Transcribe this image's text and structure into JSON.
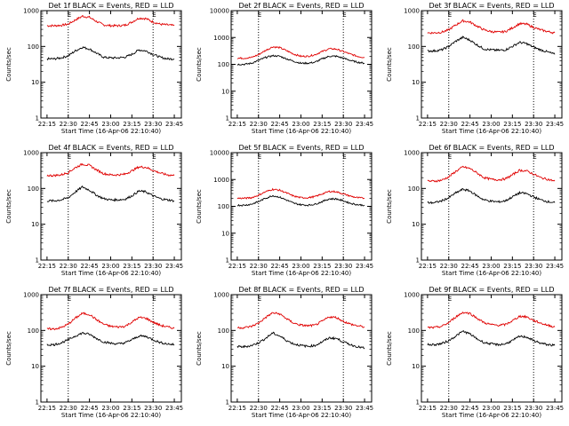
{
  "colors": {
    "events": "#000000",
    "lld": "#e00000",
    "frame": "#000000",
    "background": "#ffffff"
  },
  "chart_data": [
    {
      "type": "line",
      "title": "Det 1f BLACK = Events, RED = LLD",
      "ylabel": "Counts/sec",
      "xlabel": "Start Time (16-Apr-06 22:10:40)",
      "yscale": "log",
      "ylim": [
        1,
        1000
      ],
      "y_ticks": [
        "1",
        "10",
        "100",
        "1000"
      ],
      "x_ticks": [
        "22:15",
        "22:30",
        "22:45",
        "23:00",
        "23:15",
        "23:30",
        "23:45"
      ],
      "xlim": [
        "22:10:40",
        "23:50"
      ],
      "dotted_lines": [
        "22:30",
        "23:30"
      ],
      "corner_label": "E",
      "x": [
        "22:15",
        "22:20",
        "22:25",
        "22:30",
        "22:35",
        "22:40",
        "22:45",
        "22:50",
        "22:55",
        "23:00",
        "23:05",
        "23:10",
        "23:15",
        "23:20",
        "23:25",
        "23:30",
        "23:35",
        "23:40",
        "23:45"
      ],
      "series": [
        {
          "name": "Events",
          "color": "#000000",
          "values": [
            45,
            45,
            48,
            55,
            75,
            95,
            85,
            65,
            50,
            48,
            48,
            50,
            60,
            80,
            75,
            60,
            50,
            45,
            45
          ]
        },
        {
          "name": "LLD",
          "color": "#e00000",
          "values": [
            380,
            380,
            390,
            420,
            550,
            700,
            650,
            500,
            400,
            380,
            380,
            390,
            480,
            620,
            600,
            480,
            420,
            400,
            380
          ]
        }
      ]
    },
    {
      "type": "line",
      "title": "Det 2f BLACK = Events, RED = LLD",
      "ylabel": "Counts/sec",
      "xlabel": "Start Time (16-Apr-06 22:10:40)",
      "yscale": "log",
      "ylim": [
        1,
        10000
      ],
      "y_ticks": [
        "1",
        "10",
        "100",
        "1000",
        "10000"
      ],
      "x_ticks": [
        "22:15",
        "22:30",
        "22:45",
        "23:00",
        "23:15",
        "23:30",
        "23:45"
      ],
      "xlim": [
        "22:10:40",
        "23:50"
      ],
      "dotted_lines": [
        "22:30",
        "23:30"
      ],
      "corner_label": "E",
      "x": [
        "22:15",
        "22:20",
        "22:25",
        "22:30",
        "22:35",
        "22:40",
        "22:45",
        "22:50",
        "22:55",
        "23:00",
        "23:05",
        "23:10",
        "23:15",
        "23:20",
        "23:25",
        "23:30",
        "23:35",
        "23:40",
        "23:45"
      ],
      "series": [
        {
          "name": "Events",
          "color": "#000000",
          "values": [
            100,
            100,
            110,
            140,
            180,
            210,
            200,
            160,
            130,
            110,
            110,
            120,
            160,
            200,
            200,
            170,
            140,
            120,
            110
          ]
        },
        {
          "name": "LLD",
          "color": "#e00000",
          "values": [
            170,
            170,
            180,
            230,
            330,
            450,
            420,
            320,
            240,
            200,
            200,
            230,
            300,
            380,
            370,
            300,
            240,
            200,
            180
          ]
        }
      ]
    },
    {
      "type": "line",
      "title": "Det 3f BLACK = Events, RED = LLD",
      "ylabel": "Counts/sec",
      "xlabel": "Start Time (16-Apr-06 22:10:40)",
      "yscale": "log",
      "ylim": [
        1,
        1000
      ],
      "y_ticks": [
        "1",
        "10",
        "100",
        "1000"
      ],
      "x_ticks": [
        "22:15",
        "22:30",
        "22:45",
        "23:00",
        "23:15",
        "23:30",
        "23:45"
      ],
      "xlim": [
        "22:10:40",
        "23:50"
      ],
      "dotted_lines": [
        "22:30",
        "23:30"
      ],
      "corner_label": "E",
      "x": [
        "22:15",
        "22:20",
        "22:25",
        "22:30",
        "22:35",
        "22:40",
        "22:45",
        "22:50",
        "22:55",
        "23:00",
        "23:05",
        "23:10",
        "23:15",
        "23:20",
        "23:25",
        "23:30",
        "23:35",
        "23:40",
        "23:45"
      ],
      "series": [
        {
          "name": "Events",
          "color": "#000000",
          "values": [
            75,
            75,
            80,
            100,
            140,
            180,
            150,
            110,
            85,
            80,
            78,
            80,
            100,
            130,
            120,
            95,
            80,
            70,
            60
          ]
        },
        {
          "name": "LLD",
          "color": "#e00000",
          "values": [
            240,
            240,
            250,
            290,
            400,
            520,
            480,
            370,
            290,
            260,
            250,
            260,
            330,
            430,
            420,
            340,
            290,
            260,
            240
          ]
        }
      ]
    },
    {
      "type": "line",
      "title": "Det 4f BLACK = Events, RED = LLD",
      "ylabel": "Counts/sec",
      "xlabel": "Start Time (16-Apr-06 22:10:40)",
      "yscale": "log",
      "ylim": [
        1,
        1000
      ],
      "y_ticks": [
        "1",
        "10",
        "100",
        "1000"
      ],
      "x_ticks": [
        "22:15",
        "22:30",
        "22:45",
        "23:00",
        "23:15",
        "23:30",
        "23:45"
      ],
      "xlim": [
        "22:10:40",
        "23:50"
      ],
      "dotted_lines": [
        "22:30",
        "23:30"
      ],
      "corner_label": "E",
      "x": [
        "22:15",
        "22:20",
        "22:25",
        "22:30",
        "22:35",
        "22:40",
        "22:45",
        "22:50",
        "22:55",
        "23:00",
        "23:05",
        "23:10",
        "23:15",
        "23:20",
        "23:25",
        "23:30",
        "23:35",
        "23:40",
        "23:45"
      ],
      "series": [
        {
          "name": "Events",
          "color": "#000000",
          "values": [
            45,
            45,
            48,
            55,
            80,
            110,
            90,
            65,
            52,
            48,
            48,
            50,
            62,
            85,
            80,
            62,
            52,
            48,
            45
          ]
        },
        {
          "name": "LLD",
          "color": "#e00000",
          "values": [
            230,
            230,
            240,
            280,
            380,
            480,
            440,
            330,
            260,
            240,
            240,
            250,
            310,
            400,
            390,
            320,
            270,
            240,
            230
          ]
        }
      ]
    },
    {
      "type": "line",
      "title": "Det 5f BLACK = Events, RED = LLD",
      "ylabel": "Counts/sec",
      "xlabel": "Start Time (16-Apr-06 22:10:40)",
      "yscale": "log",
      "ylim": [
        1,
        10000
      ],
      "y_ticks": [
        "1",
        "10",
        "100",
        "1000",
        "10000"
      ],
      "x_ticks": [
        "22:15",
        "22:30",
        "22:45",
        "23:00",
        "23:15",
        "23:30",
        "23:45"
      ],
      "xlim": [
        "22:10:40",
        "23:50"
      ],
      "dotted_lines": [
        "22:30",
        "23:30"
      ],
      "corner_label": "E",
      "x": [
        "22:15",
        "22:20",
        "22:25",
        "22:30",
        "22:35",
        "22:40",
        "22:45",
        "22:50",
        "22:55",
        "23:00",
        "23:05",
        "23:10",
        "23:15",
        "23:20",
        "23:25",
        "23:30",
        "23:35",
        "23:40",
        "23:45"
      ],
      "series": [
        {
          "name": "Events",
          "color": "#000000",
          "values": [
            110,
            110,
            120,
            150,
            200,
            250,
            220,
            170,
            130,
            115,
            110,
            120,
            150,
            190,
            190,
            160,
            130,
            115,
            110
          ]
        },
        {
          "name": "LLD",
          "color": "#e00000",
          "values": [
            200,
            200,
            210,
            260,
            350,
            430,
            400,
            310,
            240,
            210,
            210,
            230,
            290,
            360,
            350,
            290,
            240,
            210,
            200
          ]
        }
      ]
    },
    {
      "type": "line",
      "title": "Det 6f BLACK = Events, RED = LLD",
      "ylabel": "Counts/sec",
      "xlabel": "Start Time (16-Apr-06 22:10:40)",
      "yscale": "log",
      "ylim": [
        1,
        1000
      ],
      "y_ticks": [
        "1",
        "10",
        "100",
        "1000"
      ],
      "x_ticks": [
        "22:15",
        "22:30",
        "22:45",
        "23:00",
        "23:15",
        "23:30",
        "23:45"
      ],
      "xlim": [
        "22:10:40",
        "23:50"
      ],
      "dotted_lines": [
        "22:30",
        "23:30"
      ],
      "corner_label": "E",
      "x": [
        "22:15",
        "22:20",
        "22:25",
        "22:30",
        "22:35",
        "22:40",
        "22:45",
        "22:50",
        "22:55",
        "23:00",
        "23:05",
        "23:10",
        "23:15",
        "23:20",
        "23:25",
        "23:30",
        "23:35",
        "23:40",
        "23:45"
      ],
      "series": [
        {
          "name": "Events",
          "color": "#000000",
          "values": [
            40,
            40,
            45,
            55,
            75,
            95,
            85,
            62,
            48,
            44,
            42,
            45,
            58,
            75,
            72,
            58,
            48,
            43,
            40
          ]
        },
        {
          "name": "LLD",
          "color": "#e00000",
          "values": [
            160,
            160,
            170,
            210,
            300,
            400,
            360,
            270,
            200,
            180,
            175,
            185,
            240,
            320,
            310,
            250,
            200,
            180,
            160
          ]
        }
      ]
    },
    {
      "type": "line",
      "title": "Det 7f BLACK = Events, RED = LLD",
      "ylabel": "Counts/sec",
      "xlabel": "Start Time (16-Apr-06 22:10:40)",
      "yscale": "log",
      "ylim": [
        1,
        1000
      ],
      "y_ticks": [
        "1",
        "10",
        "100",
        "1000"
      ],
      "x_ticks": [
        "22:15",
        "22:30",
        "22:45",
        "23:00",
        "23:15",
        "23:30",
        "23:45"
      ],
      "xlim": [
        "22:10:40",
        "23:50"
      ],
      "dotted_lines": [
        "22:30",
        "23:30"
      ],
      "corner_label": "E",
      "x": [
        "22:15",
        "22:20",
        "22:25",
        "22:30",
        "22:35",
        "22:40",
        "22:45",
        "22:50",
        "22:55",
        "23:00",
        "23:05",
        "23:10",
        "23:15",
        "23:20",
        "23:25",
        "23:30",
        "23:35",
        "23:40",
        "23:45"
      ],
      "series": [
        {
          "name": "Events",
          "color": "#000000",
          "values": [
            40,
            40,
            45,
            55,
            70,
            85,
            78,
            60,
            48,
            44,
            42,
            45,
            55,
            70,
            68,
            55,
            46,
            42,
            40
          ]
        },
        {
          "name": "LLD",
          "color": "#e00000",
          "values": [
            110,
            110,
            120,
            150,
            220,
            300,
            280,
            200,
            150,
            130,
            125,
            130,
            170,
            230,
            220,
            170,
            140,
            125,
            115
          ]
        }
      ]
    },
    {
      "type": "line",
      "title": "Det 8f BLACK = Events, RED = LLD",
      "ylabel": "Counts/sec",
      "xlabel": "Start Time (16-Apr-06 22:10:40)",
      "yscale": "log",
      "ylim": [
        1,
        1000
      ],
      "y_ticks": [
        "1",
        "10",
        "100",
        "1000"
      ],
      "x_ticks": [
        "22:15",
        "22:30",
        "22:45",
        "23:00",
        "23:15",
        "23:30",
        "23:45"
      ],
      "xlim": [
        "22:10:40",
        "23:50"
      ],
      "dotted_lines": [
        "22:30",
        "23:30"
      ],
      "corner_label": "E",
      "x": [
        "22:15",
        "22:20",
        "22:25",
        "22:30",
        "22:35",
        "22:40",
        "22:45",
        "22:50",
        "22:55",
        "23:00",
        "23:05",
        "23:10",
        "23:15",
        "23:20",
        "23:25",
        "23:30",
        "23:35",
        "23:40",
        "23:45"
      ],
      "series": [
        {
          "name": "Events",
          "color": "#000000",
          "values": [
            35,
            35,
            38,
            45,
            60,
            85,
            70,
            52,
            42,
            38,
            36,
            38,
            48,
            62,
            60,
            48,
            40,
            35,
            32
          ]
        },
        {
          "name": "LLD",
          "color": "#e00000",
          "values": [
            120,
            120,
            130,
            160,
            230,
            310,
            290,
            210,
            160,
            140,
            135,
            140,
            180,
            240,
            230,
            180,
            150,
            135,
            125
          ]
        }
      ]
    },
    {
      "type": "line",
      "title": "Det 9f BLACK = Events, RED = LLD",
      "ylabel": "Counts/sec",
      "xlabel": "Start Time (16-Apr-06 22:10:40)",
      "yscale": "log",
      "ylim": [
        1,
        1000
      ],
      "y_ticks": [
        "1",
        "10",
        "100",
        "1000"
      ],
      "x_ticks": [
        "22:15",
        "22:30",
        "22:45",
        "23:00",
        "23:15",
        "23:30",
        "23:45"
      ],
      "xlim": [
        "22:10:40",
        "23:50"
      ],
      "dotted_lines": [
        "22:30",
        "23:30"
      ],
      "corner_label": "E",
      "x": [
        "22:15",
        "22:20",
        "22:25",
        "22:30",
        "22:35",
        "22:40",
        "22:45",
        "22:50",
        "22:55",
        "23:00",
        "23:05",
        "23:10",
        "23:15",
        "23:20",
        "23:25",
        "23:30",
        "23:35",
        "23:40",
        "23:45"
      ],
      "series": [
        {
          "name": "Events",
          "color": "#000000",
          "values": [
            40,
            40,
            43,
            52,
            70,
            95,
            80,
            58,
            46,
            42,
            40,
            42,
            52,
            68,
            66,
            52,
            44,
            40,
            38
          ]
        },
        {
          "name": "LLD",
          "color": "#e00000",
          "values": [
            120,
            120,
            130,
            165,
            240,
            320,
            300,
            220,
            165,
            145,
            140,
            145,
            185,
            250,
            240,
            190,
            160,
            140,
            125
          ]
        }
      ]
    }
  ]
}
